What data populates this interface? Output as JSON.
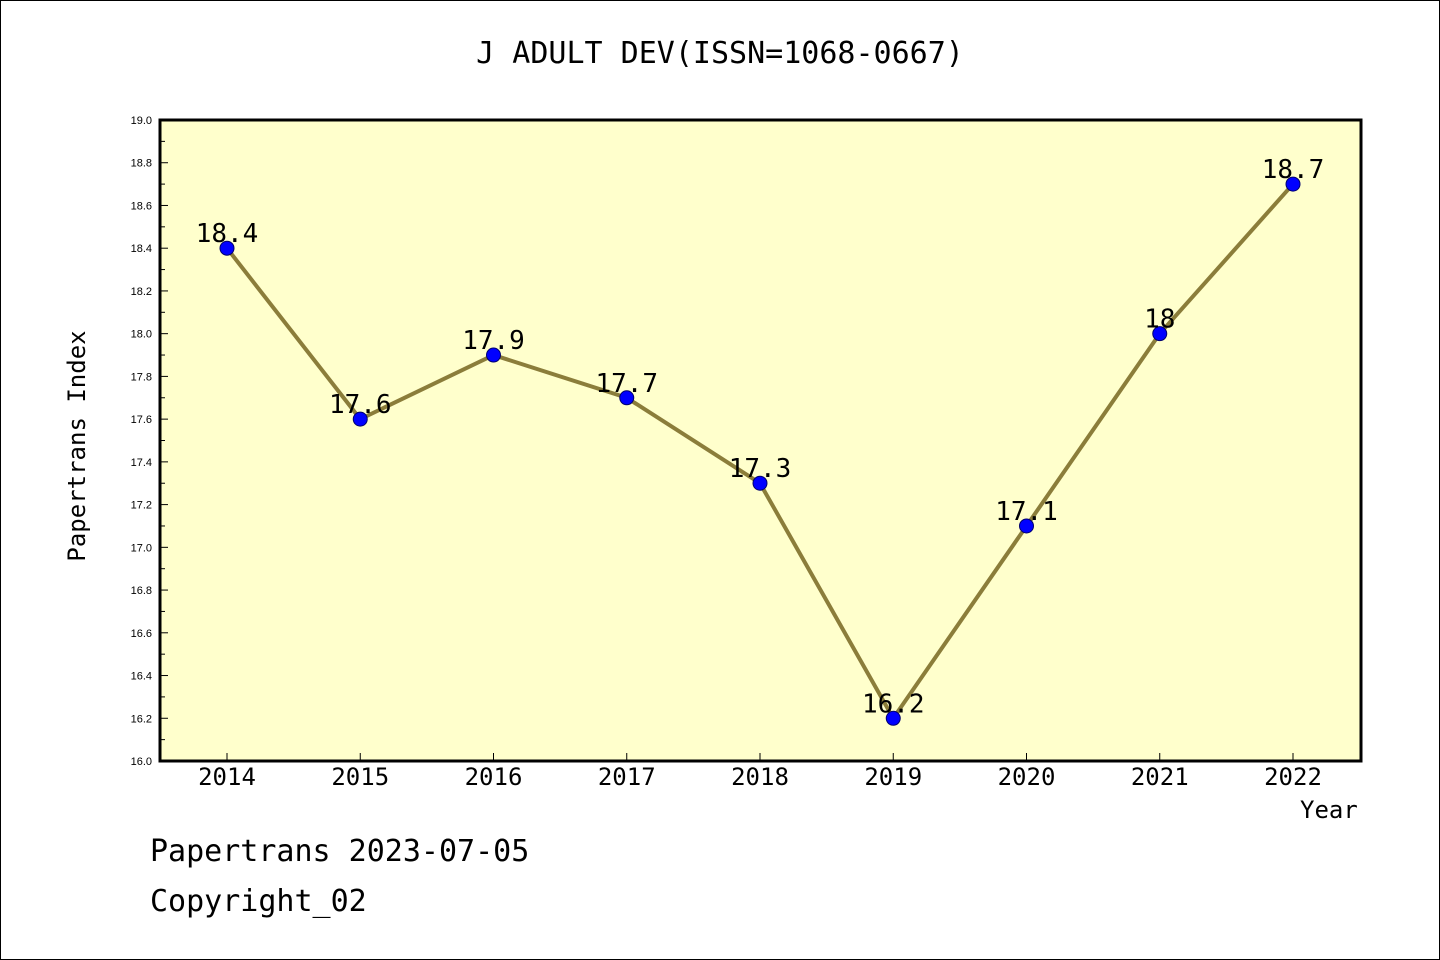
{
  "chart_data": {
    "type": "line",
    "title": "J ADULT DEV(ISSN=1068-0667)",
    "xlabel": "Year",
    "ylabel": "Papertrans Index",
    "categories": [
      "2014",
      "2015",
      "2016",
      "2017",
      "2018",
      "2019",
      "2020",
      "2021",
      "2022"
    ],
    "series": [
      {
        "values": [
          18.4,
          17.6,
          17.9,
          17.7,
          17.3,
          16.2,
          17.1,
          18.0,
          18.7
        ],
        "data_labels": [
          "18.4",
          "17.6",
          "17.9",
          "17.7",
          "17.3",
          "16.2",
          "17.1",
          "18",
          "18.7"
        ]
      }
    ],
    "ylim": [
      16.0,
      19.0
    ],
    "y_ticks": [
      "16.0",
      "16.2",
      "16.4",
      "16.6",
      "16.8",
      "17.0",
      "17.2",
      "17.4",
      "17.6",
      "17.8",
      "18.0",
      "18.2",
      "18.4",
      "18.6",
      "18.8",
      "19.0"
    ],
    "grid": false,
    "legend": "none",
    "colors": {
      "plot_background": "#ffffcc",
      "line": "#8b7d3a",
      "marker": "#0000ff",
      "axis": "#000000"
    }
  },
  "footer": {
    "line1": "Papertrans 2023-07-05",
    "line2": "Copyright_02"
  }
}
